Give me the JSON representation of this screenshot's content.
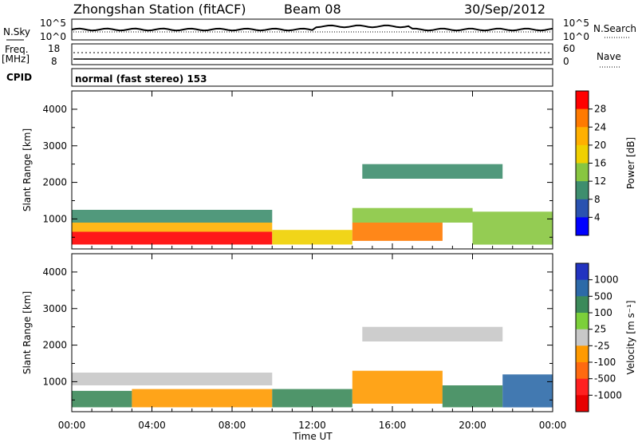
{
  "header": {
    "station_title": "Zhongshan Station (fitACF)",
    "beam_label": "Beam 08",
    "date": "30/Sep/2012"
  },
  "strip_panels": {
    "nsky_label": "N.Sky",
    "nsky_ticks": [
      "10^5",
      "10^0"
    ],
    "nsearch_label": "N.Search",
    "nsearch_ticks": [
      "10^5",
      "10^0"
    ],
    "freq_label": "Freq.",
    "freq_unit": "[MHz]",
    "freq_ticks": [
      "18",
      "8"
    ],
    "nave_label": "Nave",
    "nave_ticks": [
      "60",
      "0"
    ],
    "cpid_label": "CPID",
    "cpid_text": "normal (fast stereo) 153"
  },
  "chart_data": [
    {
      "type": "heatmap",
      "name": "power",
      "ylabel": "Slant Range [km]",
      "ylim": [
        180,
        4500
      ],
      "yticks": [
        "4000",
        "3000",
        "2000",
        "1000"
      ],
      "colorbar_label": "Power [dB]",
      "colorbar_ticks": [
        "28",
        "24",
        "20",
        "16",
        "12",
        "8",
        "4"
      ],
      "colorbar_colors": [
        "#ff0000",
        "#ff7a00",
        "#ffb000",
        "#f0d000",
        "#88c640",
        "#3e8e6e",
        "#2a52b0",
        "#0000ff"
      ],
      "regions": [
        {
          "t0": 0.0,
          "t1": 10.0,
          "r0": 300,
          "r1": 650,
          "level": 28
        },
        {
          "t0": 0.0,
          "t1": 10.0,
          "r0": 650,
          "r1": 900,
          "level": 20
        },
        {
          "t0": 0.0,
          "t1": 10.0,
          "r0": 900,
          "r1": 1250,
          "level": 8
        },
        {
          "t0": 10.0,
          "t1": 14.0,
          "r0": 300,
          "r1": 700,
          "level": 16
        },
        {
          "t0": 14.0,
          "t1": 18.5,
          "r0": 400,
          "r1": 900,
          "level": 24
        },
        {
          "t0": 14.0,
          "t1": 20.0,
          "r0": 900,
          "r1": 1300,
          "level": 12
        },
        {
          "t0": 14.5,
          "t1": 21.5,
          "r0": 2100,
          "r1": 2500,
          "level": 8
        },
        {
          "t0": 20.0,
          "t1": 24.0,
          "r0": 300,
          "r1": 1200,
          "level": 12
        }
      ]
    },
    {
      "type": "heatmap",
      "name": "velocity",
      "ylabel": "Slant Range [km]",
      "ylim": [
        180,
        4500
      ],
      "yticks": [
        "4000",
        "3000",
        "2000",
        "1000"
      ],
      "colorbar_label": "Velocity [m s⁻¹]",
      "colorbar_ticks": [
        "1000",
        "500",
        "100",
        "25",
        "-25",
        "-100",
        "-500",
        "-1000"
      ],
      "colorbar_colors": [
        "#2233c0",
        "#2d6aa8",
        "#3c8a5a",
        "#7cd03a",
        "#c8c8c8",
        "#ff9a00",
        "#ff6a10",
        "#ff2020",
        "#e80000"
      ],
      "regions": [
        {
          "t0": 0.0,
          "t1": 3.0,
          "r0": 300,
          "r1": 750,
          "level": 100
        },
        {
          "t0": 0.0,
          "t1": 10.0,
          "r0": 900,
          "r1": 1250,
          "level": 0
        },
        {
          "t0": 3.0,
          "t1": 10.0,
          "r0": 300,
          "r1": 800,
          "level": -100
        },
        {
          "t0": 10.0,
          "t1": 14.0,
          "r0": 300,
          "r1": 800,
          "level": 100
        },
        {
          "t0": 14.0,
          "t1": 18.5,
          "r0": 400,
          "r1": 1300,
          "level": -100
        },
        {
          "t0": 14.5,
          "t1": 21.5,
          "r0": 2100,
          "r1": 2500,
          "level": 0
        },
        {
          "t0": 18.5,
          "t1": 21.5,
          "r0": 300,
          "r1": 900,
          "level": 100
        },
        {
          "t0": 21.5,
          "t1": 24.0,
          "r0": 300,
          "r1": 1200,
          "level": 500
        }
      ]
    }
  ],
  "x_axis": {
    "label": "Time UT",
    "ticks": [
      "00:00",
      "04:00",
      "08:00",
      "12:00",
      "16:00",
      "20:00",
      "00:00"
    ],
    "xlim_hours": [
      0,
      24
    ]
  }
}
